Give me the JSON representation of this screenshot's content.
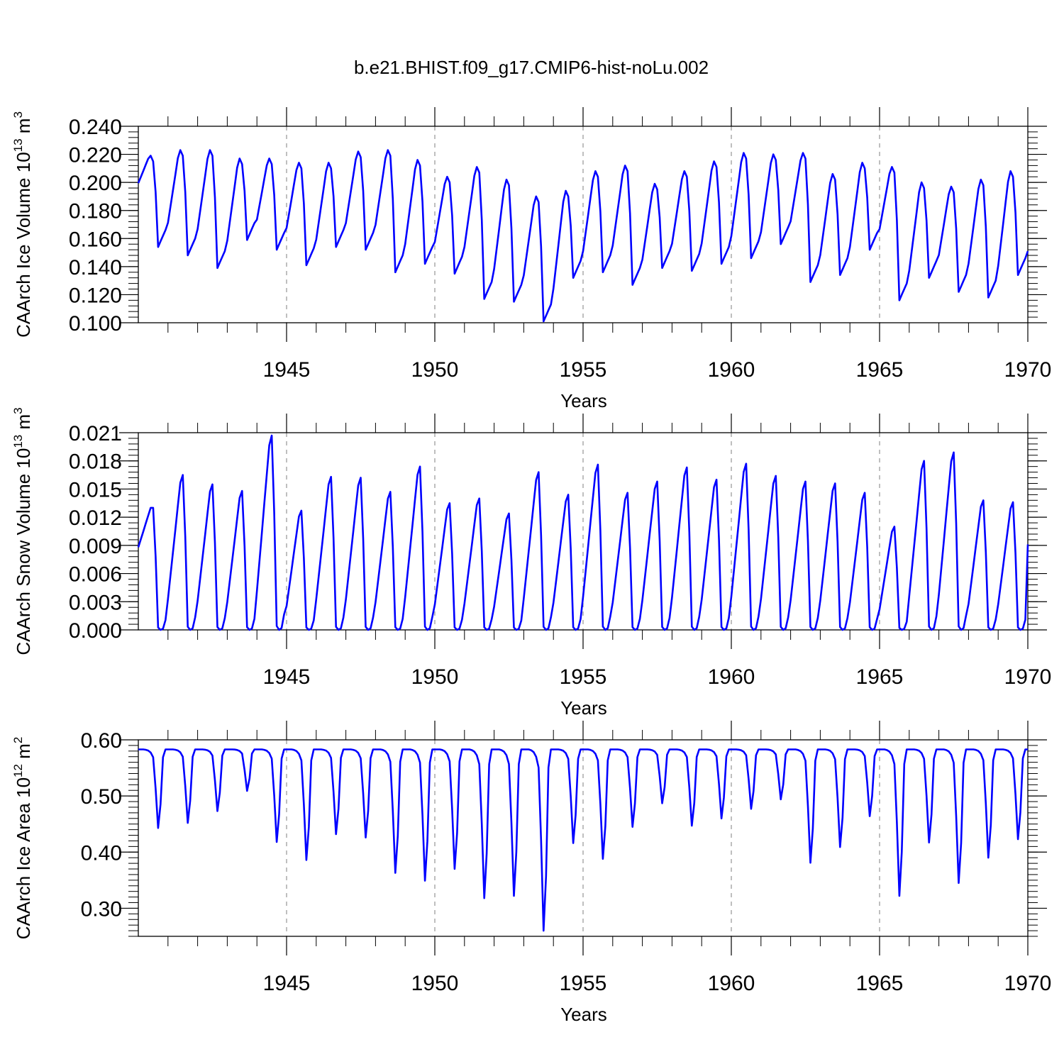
{
  "title": "b.e21.BHIST.f09_g17.CMIP6-hist-noLu.002",
  "colors": {
    "line": "#0000ff",
    "axis": "#000000",
    "grid": "#7f7f7f"
  },
  "chart_data": [
    {
      "type": "line",
      "name": "ice-volume",
      "ylabel_main": "CAArch Ice Volume 10",
      "ylabel_exp": "13",
      "ylabel_unit": " m",
      "ylabel_unit_exp": "3",
      "xlabel": "Years",
      "xlim": [
        1940.0,
        1970.0
      ],
      "ylim": [
        0.1,
        0.24
      ],
      "yticks": [
        0.1,
        0.12,
        0.14,
        0.16,
        0.18,
        0.2,
        0.22,
        0.24
      ],
      "ytick_labels": [
        "0.100",
        "0.120",
        "0.140",
        "0.160",
        "0.180",
        "0.200",
        "0.220",
        "0.240"
      ],
      "xticks": [
        1945,
        1950,
        1955,
        1960,
        1965,
        1970
      ],
      "xtick_labels": [
        "1945",
        "1950",
        "1955",
        "1960",
        "1965",
        "1970"
      ],
      "grid_x": [
        1945,
        1950,
        1955,
        1960,
        1965
      ],
      "years_max": [
        0.219,
        0.223,
        0.223,
        0.217,
        0.217,
        0.214,
        0.214,
        0.222,
        0.223,
        0.216,
        0.204,
        0.211,
        0.202,
        0.19,
        0.194,
        0.208,
        0.212,
        0.199,
        0.208,
        0.215,
        0.221,
        0.22,
        0.221,
        0.206,
        0.214,
        0.211,
        0.2,
        0.197,
        0.202,
        0.208
      ],
      "years_min": [
        0.154,
        0.148,
        0.139,
        0.159,
        0.152,
        0.141,
        0.154,
        0.152,
        0.136,
        0.142,
        0.135,
        0.117,
        0.115,
        0.101,
        0.132,
        0.136,
        0.127,
        0.139,
        0.137,
        0.142,
        0.146,
        0.156,
        0.129,
        0.134,
        0.152,
        0.116,
        0.132,
        0.122,
        0.118,
        0.134
      ],
      "end_value": 0.151
    },
    {
      "type": "line",
      "name": "snow-volume",
      "ylabel_main": "CAArch Snow Volume 10",
      "ylabel_exp": "13",
      "ylabel_unit": " m",
      "ylabel_unit_exp": "3",
      "xlabel": "Years",
      "xlim": [
        1940.0,
        1970.0
      ],
      "ylim": [
        0.0,
        0.021
      ],
      "yticks": [
        0.0,
        0.003,
        0.006,
        0.009,
        0.012,
        0.015,
        0.018,
        0.021
      ],
      "ytick_labels": [
        "0.000",
        "0.003",
        "0.006",
        "0.009",
        "0.012",
        "0.015",
        "0.018",
        "0.021"
      ],
      "xticks": [
        1945,
        1950,
        1955,
        1960,
        1965,
        1970
      ],
      "xtick_labels": [
        "1945",
        "1950",
        "1955",
        "1960",
        "1965",
        "1970"
      ],
      "grid_x": [
        1945,
        1950,
        1955,
        1960,
        1965
      ],
      "years_max": [
        0.013,
        0.0165,
        0.0155,
        0.0148,
        0.0207,
        0.0127,
        0.0163,
        0.0162,
        0.0147,
        0.0174,
        0.0135,
        0.014,
        0.0124,
        0.0168,
        0.0144,
        0.0176,
        0.0146,
        0.0158,
        0.0173,
        0.016,
        0.0177,
        0.0164,
        0.0158,
        0.0156,
        0.0146,
        0.011,
        0.018,
        0.0189,
        0.0138,
        0.0136
      ],
      "start_value": 0.0088,
      "end_value": 0.0091
    },
    {
      "type": "line",
      "name": "ice-area",
      "ylabel_main": "CAArch Ice Area 10",
      "ylabel_exp": "12",
      "ylabel_unit": " m",
      "ylabel_unit_exp": "2",
      "xlabel": "Years",
      "xlim": [
        1940.0,
        1970.0
      ],
      "ylim": [
        0.25,
        0.6
      ],
      "yticks": [
        0.3,
        0.4,
        0.5,
        0.6
      ],
      "ytick_labels": [
        "0.30",
        "0.40",
        "0.50",
        "0.60"
      ],
      "xticks": [
        1945,
        1950,
        1955,
        1960,
        1965,
        1970
      ],
      "xtick_labels": [
        "1945",
        "1950",
        "1955",
        "1960",
        "1965",
        "1970"
      ],
      "grid_x": [
        1945,
        1950,
        1955,
        1960,
        1965
      ],
      "plateau": 0.583,
      "years_min": [
        0.443,
        0.452,
        0.473,
        0.509,
        0.418,
        0.386,
        0.432,
        0.426,
        0.363,
        0.349,
        0.37,
        0.318,
        0.322,
        0.26,
        0.416,
        0.388,
        0.445,
        0.487,
        0.447,
        0.46,
        0.477,
        0.494,
        0.381,
        0.409,
        0.464,
        0.322,
        0.417,
        0.345,
        0.39,
        0.423
      ]
    }
  ]
}
